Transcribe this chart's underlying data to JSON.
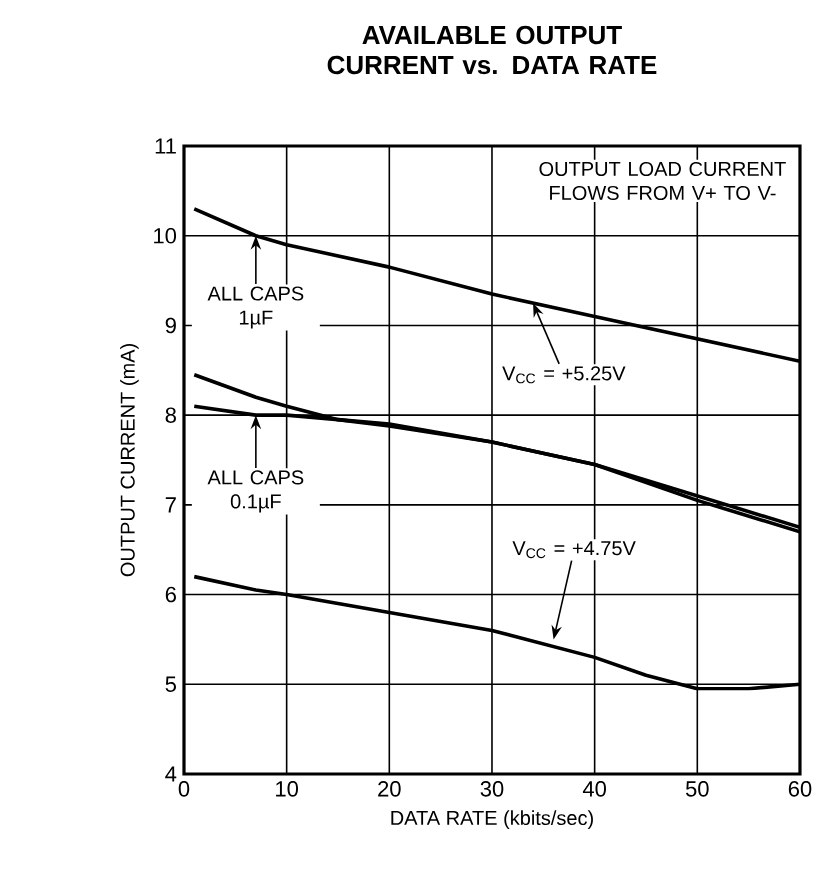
{
  "chart_data": {
    "type": "line",
    "title": "AVAILABLE OUTPUT CURRENT vs. DATA RATE",
    "xlabel": "DATA RATE (kbits/sec)",
    "ylabel": "OUTPUT CURRENT (mA)",
    "xlim": [
      0,
      60
    ],
    "ylim": [
      4,
      11
    ],
    "xticks": [
      0,
      10,
      20,
      30,
      40,
      50,
      60
    ],
    "yticks": [
      4,
      5,
      6,
      7,
      8,
      9,
      10,
      11
    ],
    "grid": true,
    "marker": "none",
    "line_style": "solid",
    "series": [
      {
        "color": "#000000",
        "x": [
          1,
          7,
          10,
          20,
          30,
          40,
          50,
          60
        ],
        "values": [
          10.3,
          10.0,
          9.9,
          9.65,
          9.35,
          9.1,
          8.85,
          8.6
        ]
      },
      {
        "color": "#000000",
        "x": [
          1,
          7,
          10,
          15,
          20,
          30,
          40,
          50,
          60
        ],
        "values": [
          8.45,
          8.2,
          8.1,
          7.95,
          7.9,
          7.7,
          7.45,
          7.1,
          6.75
        ]
      },
      {
        "color": "#000000",
        "x": [
          1,
          7,
          10,
          15,
          20,
          30,
          40,
          50,
          60
        ],
        "values": [
          8.1,
          8.0,
          8.0,
          7.95,
          7.88,
          7.7,
          7.45,
          7.05,
          6.7
        ]
      },
      {
        "color": "#000000",
        "x": [
          1,
          7,
          10,
          20,
          30,
          40,
          45,
          50,
          55,
          60
        ],
        "values": [
          6.2,
          6.05,
          6.0,
          5.8,
          5.6,
          5.3,
          5.1,
          4.95,
          4.95,
          5.0
        ]
      }
    ],
    "annotations": [
      "OUTPUT LOAD CURRENT FLOWS FROM V+ TO V-",
      {
        "text": "ALL CAPS 1µF",
        "x": 7,
        "y": 10.0
      },
      {
        "text": "ALL CAPS 0.1µF",
        "x": 7,
        "y": 8.0
      },
      {
        "text": "V$_{CC}$ = +5.25V",
        "x": 34,
        "y": 9.25
      },
      {
        "text": "V$_{CC}$ = +4.75V",
        "x": 36,
        "y": 5.5
      }
    ]
  }
}
